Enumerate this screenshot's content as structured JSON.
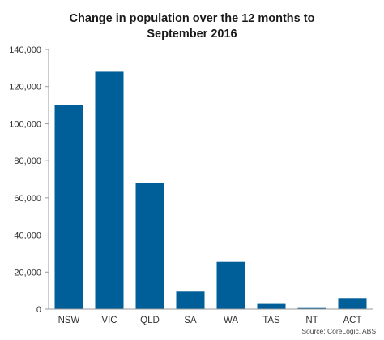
{
  "chart_data": {
    "type": "bar",
    "title_lines": [
      "Change in population over the 12 months to",
      "September 2016"
    ],
    "categories": [
      "NSW",
      "VIC",
      "QLD",
      "SA",
      "WA",
      "TAS",
      "NT",
      "ACT"
    ],
    "values": [
      110000,
      128000,
      68000,
      9500,
      25500,
      2800,
      1000,
      6000
    ],
    "ylim": [
      0,
      140000
    ],
    "yticks": [
      0,
      20000,
      40000,
      60000,
      80000,
      100000,
      120000,
      140000
    ],
    "ytick_labels": [
      "0",
      "20,000",
      "40,000",
      "60,000",
      "80,000",
      "100,000",
      "120,000",
      "140,000"
    ],
    "xlabel": "",
    "ylabel": "",
    "grid": false,
    "bar_color": "#005e99",
    "source": "Source: CoreLogic, ABS"
  }
}
